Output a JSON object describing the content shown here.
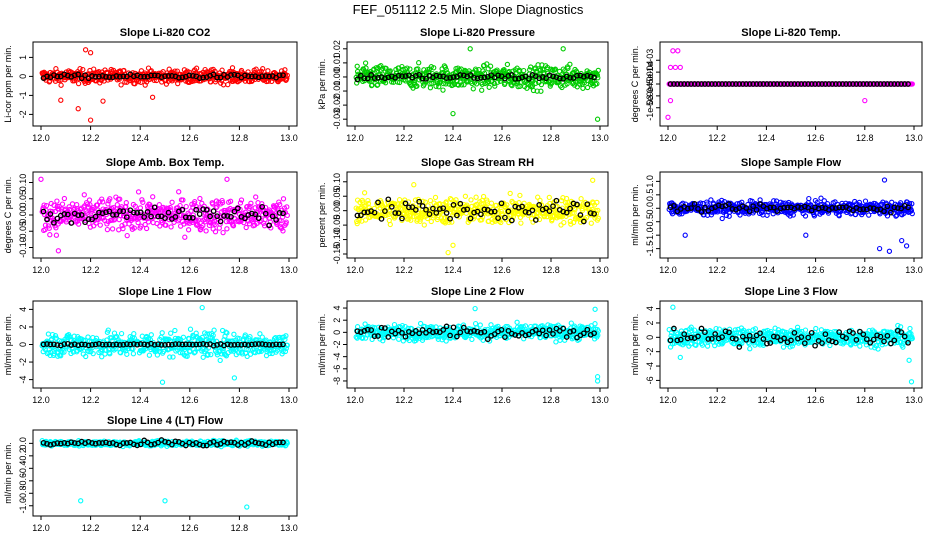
{
  "page_title": "FEF_051112  2.5 Min. Slope Diagnostics",
  "colors": {
    "red": "#ff0000",
    "green": "#00cc00",
    "magenta": "#ff00ff",
    "yellow": "#ffff00",
    "blue": "#0000ff",
    "cyan": "#00ffff",
    "reference": "#000000"
  },
  "chart_data": [
    {
      "type": "scatter",
      "title": "Slope Li-820 CO2",
      "ylabel": "Li-cor ppm per min.",
      "xlim": [
        12.0,
        13.0
      ],
      "xticks": [
        "12.0",
        "12.2",
        "12.4",
        "12.6",
        "12.8",
        "13.0"
      ],
      "ylim": [
        -2.4,
        1.6
      ],
      "yticks": [
        "-2",
        "-1",
        "0",
        "1"
      ],
      "series_color": "red",
      "spread": 0.35,
      "black_spread": 0.1,
      "outliers": [
        [
          12.18,
          1.4
        ],
        [
          12.2,
          1.25
        ],
        [
          12.2,
          -2.3
        ],
        [
          12.15,
          -1.7
        ],
        [
          12.25,
          -1.3
        ],
        [
          12.08,
          -1.25
        ],
        [
          12.45,
          -1.1
        ]
      ]
    },
    {
      "type": "scatter",
      "title": "Slope Li-820 Pressure",
      "ylabel": "kPa per min.",
      "xlim": [
        12.0,
        13.0
      ],
      "xticks": [
        "12.0",
        "12.2",
        "12.4",
        "12.6",
        "12.8",
        "13.0"
      ],
      "ylim": [
        -0.032,
        0.022
      ],
      "yticks": [
        "-0.03",
        "-0.02",
        "-0.01",
        "0.00",
        "0.01",
        "0.02"
      ],
      "series_color": "green",
      "spread": 0.008,
      "black_spread": 0.002,
      "outliers": [
        [
          12.47,
          0.02
        ],
        [
          12.99,
          -0.03
        ],
        [
          12.4,
          -0.026
        ],
        [
          12.85,
          0.02
        ]
      ]
    },
    {
      "type": "scatter",
      "title": "Slope Li-820 Temp.",
      "ylabel": "degrees C per min.",
      "xlim": [
        12.0,
        13.0
      ],
      "xticks": [
        "12.0",
        "12.2",
        "12.4",
        "12.6",
        "12.8",
        "13.0"
      ],
      "ylim": [
        -0.0016,
        0.0016
      ],
      "yticks": [
        "-1e-03",
        "-5e-04",
        "0e+00",
        "5e-04",
        "1e-03"
      ],
      "series_color": "magenta",
      "spread": 0.0,
      "black_spread": 0.0,
      "outliers": [
        [
          12.02,
          0.0014
        ],
        [
          12.04,
          0.0014
        ],
        [
          12.01,
          0.0007
        ],
        [
          12.03,
          0.0007
        ],
        [
          12.05,
          0.0007
        ],
        [
          12.01,
          -0.0007
        ],
        [
          12.0,
          -0.0014
        ],
        [
          12.8,
          -0.0007
        ]
      ]
    },
    {
      "type": "scatter",
      "title": "Slope Amb. Box Temp.",
      "ylabel": "degrees C per min.",
      "xlim": [
        12.0,
        13.0
      ],
      "xticks": [
        "12.0",
        "12.2",
        "12.4",
        "12.6",
        "12.8",
        "13.0"
      ],
      "ylim": [
        -0.12,
        0.12
      ],
      "yticks": [
        "-0.10",
        "-0.05",
        "0.00",
        "0.05",
        "0.10"
      ],
      "series_color": "magenta",
      "spread": 0.05,
      "black_spread": 0.025,
      "outliers": [
        [
          12.07,
          -0.11
        ],
        [
          12.75,
          0.11
        ],
        [
          12.0,
          0.11
        ]
      ]
    },
    {
      "type": "scatter",
      "title": "Slope Gas Stream RH",
      "ylabel": "percent per min.",
      "xlim": [
        12.0,
        13.0
      ],
      "xticks": [
        "12.0",
        "12.2",
        "12.4",
        "12.6",
        "12.8",
        "13.0"
      ],
      "ylim": [
        -0.15,
        0.12
      ],
      "yticks": [
        "-0.15",
        "-0.10",
        "-0.05",
        "0.00",
        "0.05",
        "0.10"
      ],
      "series_color": "yellow",
      "spread": 0.045,
      "black_spread": 0.035,
      "outliers": [
        [
          12.38,
          -0.145
        ],
        [
          12.4,
          -0.12
        ],
        [
          12.97,
          0.105
        ],
        [
          12.24,
          0.09
        ]
      ]
    },
    {
      "type": "scatter",
      "title": "Slope Sample Flow",
      "ylabel": "ml/min per min.",
      "xlim": [
        12.0,
        13.0
      ],
      "xticks": [
        "12.0",
        "12.2",
        "12.4",
        "12.6",
        "12.8",
        "13.0"
      ],
      "ylim": [
        -1.7,
        1.2
      ],
      "yticks": [
        "-1.5",
        "-1.0",
        "-0.5",
        "0.0",
        "0.5",
        "1.0"
      ],
      "series_color": "blue",
      "spread": 0.25,
      "black_spread": 0.12,
      "outliers": [
        [
          12.88,
          1.05
        ],
        [
          12.9,
          -1.6
        ],
        [
          12.97,
          -1.4
        ],
        [
          12.07,
          -1.0
        ],
        [
          12.56,
          -1.0
        ],
        [
          12.95,
          -1.2
        ],
        [
          12.86,
          -1.5
        ]
      ]
    },
    {
      "type": "scatter",
      "title": "Slope Line 1 Flow",
      "ylabel": "ml/min per min.",
      "xlim": [
        12.0,
        13.0
      ],
      "xticks": [
        "12.0",
        "12.2",
        "12.4",
        "12.6",
        "12.8",
        "13.0"
      ],
      "ylim": [
        -4.5,
        4.5
      ],
      "yticks": [
        "-4",
        "-2",
        "0",
        "2",
        "4"
      ],
      "series_color": "cyan",
      "spread": 1.4,
      "black_spread": 0.1,
      "outliers": [
        [
          12.49,
          -4.3
        ],
        [
          12.65,
          4.2
        ],
        [
          12.78,
          -3.8
        ]
      ]
    },
    {
      "type": "scatter",
      "title": "Slope Line 2 Flow",
      "ylabel": "ml/min per min.",
      "xlim": [
        12.0,
        13.0
      ],
      "xticks": [
        "12.0",
        "12.2",
        "12.4",
        "12.6",
        "12.8",
        "13.0"
      ],
      "ylim": [
        -8.5,
        4.5
      ],
      "yticks": [
        "-8",
        "-6",
        "-4",
        "-2",
        "0",
        "2",
        "4"
      ],
      "series_color": "cyan",
      "spread": 1.2,
      "black_spread": 0.9,
      "outliers": [
        [
          12.99,
          -8.0
        ],
        [
          12.99,
          -7.3
        ],
        [
          12.98,
          3.8
        ],
        [
          12.49,
          3.9
        ]
      ]
    },
    {
      "type": "scatter",
      "title": "Slope Line 3 Flow",
      "ylabel": "ml/min per min.",
      "xlim": [
        12.0,
        13.0
      ],
      "xticks": [
        "12.0",
        "12.2",
        "12.4",
        "12.6",
        "12.8",
        "13.0"
      ],
      "ylim": [
        -6.5,
        4.5
      ],
      "yticks": [
        "-6",
        "-4",
        "-2",
        "0",
        "2",
        "4"
      ],
      "series_color": "cyan",
      "spread": 1.2,
      "black_spread": 1.0,
      "outliers": [
        [
          12.99,
          -6.2
        ],
        [
          12.98,
          -3.2
        ],
        [
          12.02,
          4.2
        ],
        [
          12.05,
          -2.8
        ]
      ]
    },
    {
      "type": "scatter",
      "title": "Slope Line 4 (LT) Flow",
      "ylabel": "ml/min per min.",
      "xlim": [
        12.0,
        13.0
      ],
      "xticks": [
        "12.0",
        "12.2",
        "12.4",
        "12.6",
        "12.8",
        "13.0"
      ],
      "ylim": [
        -1.1,
        0.15
      ],
      "yticks": [
        "-1.0",
        "-0.8",
        "-0.6",
        "-0.4",
        "-0.2",
        "0.0"
      ],
      "series_color": "cyan",
      "spread": 0.04,
      "black_spread": 0.04,
      "outliers": [
        [
          12.16,
          -0.92
        ],
        [
          12.5,
          -0.92
        ],
        [
          12.83,
          -1.02
        ]
      ]
    }
  ]
}
